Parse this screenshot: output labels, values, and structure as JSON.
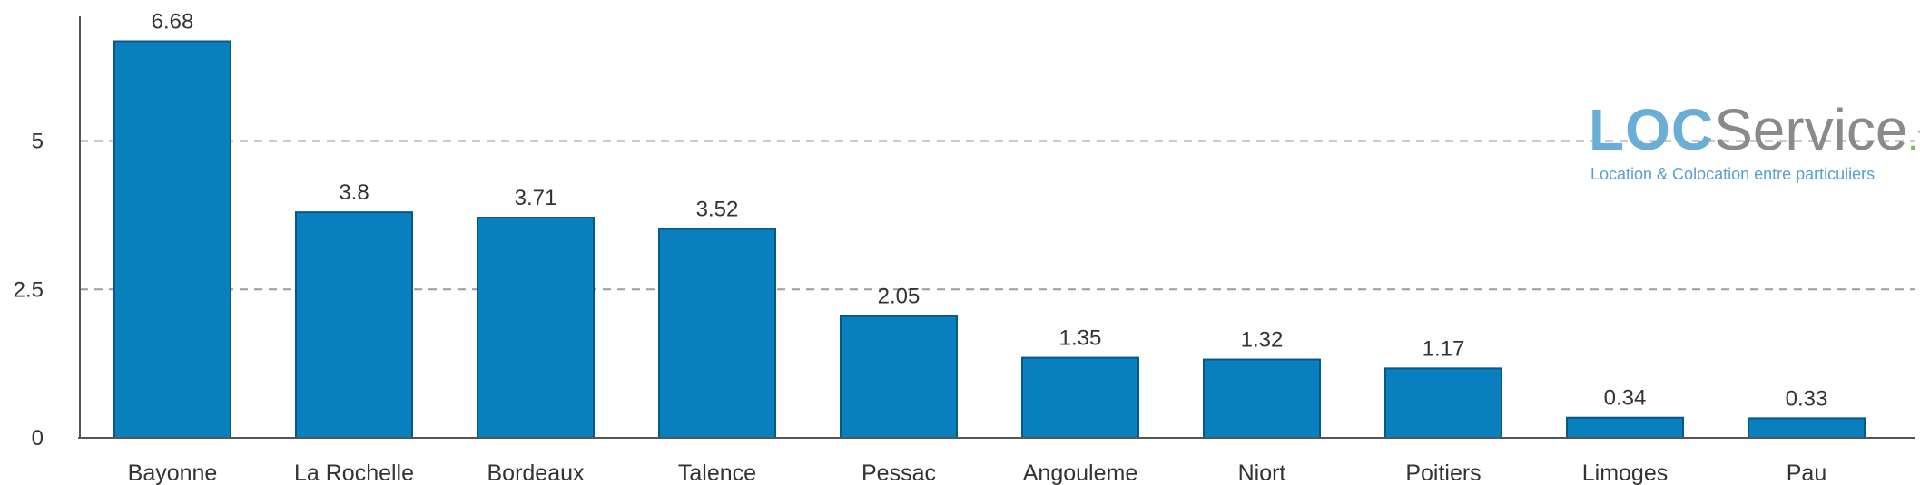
{
  "chart_data": {
    "type": "bar",
    "categories": [
      "Bayonne",
      "La Rochelle",
      "Bordeaux",
      "Talence",
      "Pessac",
      "Angouleme",
      "Niort",
      "Poitiers",
      "Limoges",
      "Pau"
    ],
    "values": [
      6.68,
      3.8,
      3.71,
      3.52,
      2.05,
      1.35,
      1.32,
      1.17,
      0.34,
      0.33
    ],
    "value_labels": [
      "6.68",
      "3.8",
      "3.71",
      "3.52",
      "2.05",
      "1.35",
      "1.32",
      "1.17",
      "0.34",
      "0.33"
    ],
    "yticks": [
      0,
      2.5,
      5
    ],
    "ytick_labels": [
      "0",
      "2.5",
      "5"
    ],
    "ylim": [
      0,
      7.1
    ],
    "grid": "dashed horizontal",
    "bar_color": "#0a7fbd"
  },
  "logo": {
    "loc": "LOC",
    "service": "Service",
    "fr": ".fr",
    "tagline": "Location & Colocation entre particuliers",
    "colors": {
      "loc": "#6aaed6",
      "service": "#8a8a8a",
      "fr": "#7bbf45"
    }
  }
}
